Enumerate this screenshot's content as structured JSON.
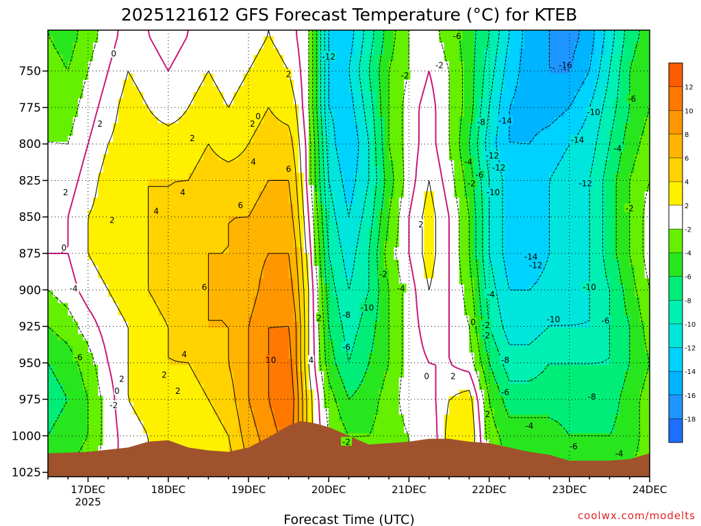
{
  "chart_data": {
    "type": "heatmap",
    "title": "2025121612 GFS Forecast Temperature (°C) for KTEB",
    "xlabel": "Forecast Time (UTC)",
    "ylabel": "",
    "x_ticks": [
      "17DEC",
      "18DEC",
      "19DEC",
      "20DEC",
      "21DEC",
      "22DEC",
      "23DEC",
      "24DEC"
    ],
    "x_tick_year": "2025",
    "x_range_days": [
      16.5,
      24.0
    ],
    "y_ticks": [
      750,
      775,
      800,
      825,
      850,
      875,
      900,
      925,
      950,
      975,
      1000,
      1025
    ],
    "y_range_hpa": [
      722,
      1028
    ],
    "colorbar": {
      "levels": [
        -18,
        -16,
        -14,
        -12,
        -10,
        -8,
        -6,
        -4,
        -2,
        2,
        4,
        6,
        8,
        10,
        12
      ],
      "labels": [
        "12",
        "10",
        "8",
        "6",
        "4",
        "2",
        "-2",
        "-4",
        "-6",
        "-8",
        "-10",
        "-12",
        "-14",
        "-16",
        "-18"
      ],
      "colors": [
        "#1e6eff",
        "#1e96ff",
        "#00b4ff",
        "#00d2ff",
        "#00e6dc",
        "#00f0b4",
        "#00ee78",
        "#28e61e",
        "#64f000",
        "#ffffff",
        "#fff000",
        "#ffd200",
        "#ffb400",
        "#ff9600",
        "#ff7800",
        "#ff5a00"
      ]
    },
    "series": [
      {
        "name": "temperature",
        "time_days": [
          16.5,
          16.75,
          17.0,
          17.25,
          17.5,
          17.75,
          18.0,
          18.25,
          18.5,
          18.75,
          19.0,
          19.25,
          19.5,
          19.6,
          19.75,
          20.0,
          20.25,
          20.5,
          20.75,
          21.0,
          21.25,
          21.5,
          21.75,
          22.0,
          22.25,
          22.5,
          22.75,
          23.0,
          23.25,
          23.5,
          23.75,
          24.0
        ],
        "pressure_hpa": [
          725,
          750,
          775,
          800,
          825,
          850,
          875,
          900,
          925,
          950,
          975,
          1000,
          1025
        ],
        "values": [
          [
            -4,
            -5,
            -3,
            -1,
            1,
            0,
            -1,
            0,
            1,
            0,
            1,
            2,
            1,
            0,
            -2,
            -12,
            -13,
            -9,
            -5,
            -2,
            -1,
            -3,
            -5,
            -8,
            -12,
            -15,
            -16,
            -17,
            -15,
            -11,
            -7,
            -5
          ],
          [
            -3,
            -4,
            -2,
            0,
            2,
            1,
            0,
            1,
            2,
            1,
            2,
            3,
            2,
            1,
            -2,
            -12,
            -12,
            -8,
            -4,
            -2,
            0,
            -2,
            -5,
            -9,
            -13,
            -15,
            -16,
            -16,
            -14,
            -10,
            -6,
            -4
          ],
          [
            -2,
            -3,
            -1,
            1,
            3,
            2,
            1,
            2,
            3,
            2,
            3,
            4,
            3,
            2,
            -2,
            -12,
            -13,
            -9,
            -4,
            -1,
            1,
            -2,
            -5,
            -10,
            -14,
            -15,
            -15,
            -14,
            -12,
            -9,
            -6,
            -4
          ],
          [
            -2,
            -2,
            0,
            2,
            3,
            3,
            3,
            3,
            4,
            3,
            4,
            5,
            5,
            3,
            -1,
            -11,
            -14,
            -10,
            -4,
            -1,
            1,
            -2,
            -6,
            -11,
            -14,
            -14,
            -13,
            -12,
            -11,
            -8,
            -5,
            -3
          ],
          [
            -1,
            -1,
            1,
            3,
            3,
            4,
            4,
            4,
            5,
            5,
            5,
            6,
            6,
            4,
            -1,
            -10,
            -13,
            -10,
            -5,
            -1,
            2,
            -1,
            -5,
            -10,
            -13,
            -13,
            -12,
            -11,
            -10,
            -7,
            -4,
            -2
          ],
          [
            -1,
            0,
            2,
            3,
            3,
            4,
            4,
            5,
            5,
            6,
            6,
            7,
            7,
            5,
            0,
            -9,
            -12,
            -9,
            -4,
            0,
            3,
            0,
            -4,
            -10,
            -13,
            -14,
            -12,
            -11,
            -10,
            -7,
            -4,
            -1
          ],
          [
            0,
            0,
            2,
            3,
            3,
            4,
            5,
            5,
            6,
            6,
            7,
            8,
            8,
            6,
            1,
            -8,
            -11,
            -8,
            -3,
            0,
            3,
            0,
            -4,
            -10,
            -13,
            -14,
            -12,
            -11,
            -10,
            -7,
            -4,
            -1
          ],
          [
            -2,
            -1,
            1,
            2,
            3,
            4,
            5,
            5,
            6,
            6,
            7,
            9,
            9,
            7,
            2,
            -7,
            -10,
            -8,
            -4,
            -1,
            2,
            0,
            -3,
            -9,
            -12,
            -12,
            -11,
            -11,
            -10,
            -8,
            -5,
            -2
          ],
          [
            -4,
            -3,
            -1,
            1,
            2,
            3,
            4,
            5,
            6,
            6,
            8,
            10,
            10,
            8,
            2,
            -6,
            -9,
            -7,
            -4,
            -1,
            1,
            0,
            -2,
            -8,
            -11,
            -11,
            -10,
            -10,
            -10,
            -8,
            -6,
            -3
          ],
          [
            -6,
            -5,
            -3,
            0,
            2,
            3,
            4,
            4,
            5,
            6,
            8,
            10,
            11,
            8,
            2,
            -5,
            -8,
            -6,
            -4,
            -1,
            0,
            0,
            -1,
            -6,
            -9,
            -9,
            -8,
            -8,
            -8,
            -8,
            -6,
            -4
          ],
          [
            -7,
            -6,
            -4,
            -1,
            2,
            3,
            3,
            3,
            4,
            5,
            8,
            10,
            12,
            9,
            3,
            -3,
            -6,
            -5,
            -3,
            -1,
            -1,
            2,
            3,
            -4,
            -7,
            -7,
            -7,
            -7,
            -7,
            -7,
            -5,
            -3
          ],
          [
            -6,
            -5,
            -4,
            -1,
            1,
            2,
            3,
            2,
            3,
            4,
            7,
            9,
            11,
            9,
            3,
            -2,
            -4,
            -4,
            -3,
            -2,
            -2,
            3,
            4,
            -3,
            -5,
            -5,
            -5,
            -6,
            -6,
            -6,
            -5,
            -3
          ],
          [
            -5,
            -4,
            -3,
            -1,
            1,
            2,
            2,
            2,
            2,
            3,
            6,
            8,
            10,
            8,
            3,
            -1,
            -3,
            -3,
            -3,
            -2,
            -2,
            2,
            3,
            -2,
            -4,
            -4,
            -4,
            -5,
            -5,
            -5,
            -4,
            -3
          ]
        ]
      }
    ],
    "terrain_surface_hpa": [
      [
        16.5,
        1012
      ],
      [
        17.0,
        1011
      ],
      [
        17.5,
        1008
      ],
      [
        17.75,
        1004
      ],
      [
        18.0,
        1003
      ],
      [
        18.25,
        1008
      ],
      [
        18.5,
        1010
      ],
      [
        18.75,
        1011
      ],
      [
        19.0,
        1008
      ],
      [
        19.25,
        1001
      ],
      [
        19.5,
        993
      ],
      [
        19.65,
        990
      ],
      [
        19.8,
        991
      ],
      [
        20.0,
        994
      ],
      [
        20.25,
        1000
      ],
      [
        20.5,
        1006
      ],
      [
        20.75,
        1005
      ],
      [
        21.0,
        1004
      ],
      [
        21.25,
        1002
      ],
      [
        21.5,
        1002
      ],
      [
        21.75,
        1004
      ],
      [
        22.0,
        1005
      ],
      [
        22.25,
        1008
      ],
      [
        22.5,
        1011
      ],
      [
        22.75,
        1013
      ],
      [
        23.0,
        1017
      ],
      [
        23.25,
        1017
      ],
      [
        23.5,
        1017
      ],
      [
        23.75,
        1016
      ],
      [
        24.0,
        1012
      ]
    ],
    "contour_labels": [
      {
        "text": "0",
        "t": 17.32,
        "p": 738
      },
      {
        "text": "2",
        "t": 17.15,
        "p": 786
      },
      {
        "text": "2",
        "t": 16.72,
        "p": 833
      },
      {
        "text": "2",
        "t": 17.3,
        "p": 852
      },
      {
        "text": "0",
        "t": 16.7,
        "p": 871
      },
      {
        "text": "-4",
        "t": 16.82,
        "p": 899
      },
      {
        "text": "-6",
        "t": 16.88,
        "p": 946
      },
      {
        "text": "0",
        "t": 17.36,
        "p": 969
      },
      {
        "text": "-2",
        "t": 17.32,
        "p": 979
      },
      {
        "text": "2",
        "t": 17.42,
        "p": 961
      },
      {
        "text": "4",
        "t": 17.85,
        "p": 846
      },
      {
        "text": "2",
        "t": 17.95,
        "p": 958
      },
      {
        "text": "2",
        "t": 18.12,
        "p": 969
      },
      {
        "text": "4",
        "t": 18.2,
        "p": 944
      },
      {
        "text": "4",
        "t": 18.18,
        "p": 833
      },
      {
        "text": "2",
        "t": 18.3,
        "p": 796
      },
      {
        "text": "6",
        "t": 18.45,
        "p": 898
      },
      {
        "text": "6",
        "t": 18.9,
        "p": 842
      },
      {
        "text": "4",
        "t": 19.06,
        "p": 812
      },
      {
        "text": "2",
        "t": 19.05,
        "p": 786
      },
      {
        "text": "0",
        "t": 19.12,
        "p": 781
      },
      {
        "text": "2",
        "t": 19.5,
        "p": 752
      },
      {
        "text": "6",
        "t": 19.5,
        "p": 817
      },
      {
        "text": "10",
        "t": 19.28,
        "p": 948
      },
      {
        "text": "4",
        "t": 19.78,
        "p": 948
      },
      {
        "text": "2",
        "t": 19.88,
        "p": 919
      },
      {
        "text": "-12",
        "t": 20.0,
        "p": 740
      },
      {
        "text": "-2",
        "t": 20.22,
        "p": 1004
      },
      {
        "text": "-6",
        "t": 20.22,
        "p": 939
      },
      {
        "text": "-8",
        "t": 20.22,
        "p": 917
      },
      {
        "text": "-10",
        "t": 20.48,
        "p": 912
      },
      {
        "text": "-2",
        "t": 20.68,
        "p": 889
      },
      {
        "text": "-4",
        "t": 20.9,
        "p": 899
      },
      {
        "text": "-2",
        "t": 20.95,
        "p": 753
      },
      {
        "text": "-2",
        "t": 21.38,
        "p": 746
      },
      {
        "text": "2",
        "t": 21.15,
        "p": 855
      },
      {
        "text": "0",
        "t": 21.22,
        "p": 959
      },
      {
        "text": "2",
        "t": 21.55,
        "p": 959
      },
      {
        "text": "-6",
        "t": 21.6,
        "p": 726
      },
      {
        "text": "-4",
        "t": 21.74,
        "p": 812
      },
      {
        "text": "-2",
        "t": 21.78,
        "p": 827
      },
      {
        "text": "-6",
        "t": 21.88,
        "p": 821
      },
      {
        "text": "-8",
        "t": 21.9,
        "p": 785
      },
      {
        "text": "-14",
        "t": 22.2,
        "p": 784
      },
      {
        "text": "-12",
        "t": 22.04,
        "p": 808
      },
      {
        "text": "-12",
        "t": 22.12,
        "p": 816
      },
      {
        "text": "-10",
        "t": 22.05,
        "p": 833
      },
      {
        "text": "-4",
        "t": 22.02,
        "p": 903
      },
      {
        "text": "0",
        "t": 21.8,
        "p": 922
      },
      {
        "text": "-2",
        "t": 21.96,
        "p": 924
      },
      {
        "text": "-2",
        "t": 21.96,
        "p": 931
      },
      {
        "text": "2",
        "t": 21.98,
        "p": 985
      },
      {
        "text": "-8",
        "t": 22.2,
        "p": 948
      },
      {
        "text": "-6",
        "t": 22.2,
        "p": 970
      },
      {
        "text": "-4",
        "t": 22.5,
        "p": 993
      },
      {
        "text": "-16",
        "t": 22.95,
        "p": 746
      },
      {
        "text": "-14",
        "t": 23.1,
        "p": 797
      },
      {
        "text": "-12",
        "t": 23.2,
        "p": 827
      },
      {
        "text": "-14",
        "t": 22.52,
        "p": 877
      },
      {
        "text": "-12",
        "t": 22.58,
        "p": 883
      },
      {
        "text": "-10",
        "t": 23.3,
        "p": 778
      },
      {
        "text": "-10",
        "t": 23.25,
        "p": 898
      },
      {
        "text": "-10",
        "t": 22.8,
        "p": 920
      },
      {
        "text": "-8",
        "t": 23.28,
        "p": 973
      },
      {
        "text": "-6",
        "t": 23.05,
        "p": 1007
      },
      {
        "text": "-6",
        "t": 23.78,
        "p": 769
      },
      {
        "text": "-4",
        "t": 23.6,
        "p": 803
      },
      {
        "text": "-2",
        "t": 23.75,
        "p": 844
      },
      {
        "text": "-6",
        "t": 23.45,
        "p": 921
      },
      {
        "text": "-4",
        "t": 23.62,
        "p": 1012
      }
    ]
  },
  "credit": "coolwx.com/modelts"
}
